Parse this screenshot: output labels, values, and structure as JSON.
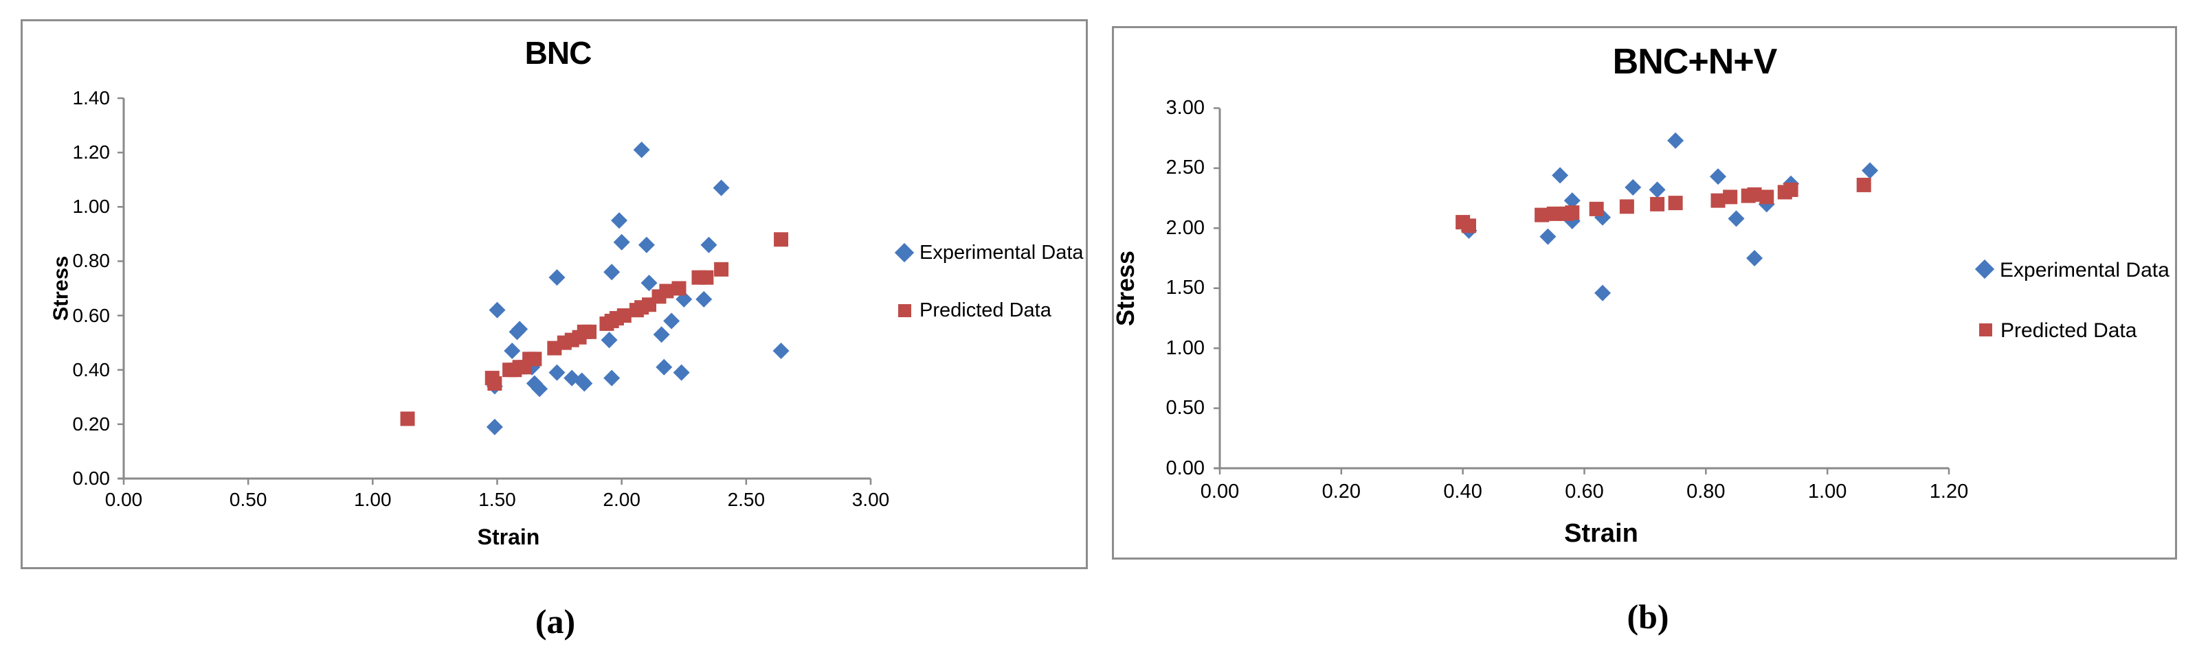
{
  "captions": [
    "(a)",
    "(b)"
  ],
  "colors": {
    "experimental": "#4678BE",
    "predicted": "#BE4B48",
    "axis": "#8a8a8a",
    "panel_border": "#8d8d8d",
    "text": "#000000"
  },
  "chart_data": [
    {
      "type": "scatter",
      "title": "BNC",
      "xlabel": "Strain",
      "ylabel": "Stress",
      "xlim": [
        0.0,
        3.0
      ],
      "ylim": [
        0.0,
        1.4
      ],
      "x_step": 0.5,
      "y_step": 0.2,
      "tick_decimals": 2,
      "grid": false,
      "legend_position": "right",
      "series": [
        {
          "name": "Experimental Data",
          "marker": "diamond",
          "color": "#4678BE",
          "points": [
            [
              1.49,
              0.34
            ],
            [
              1.49,
              0.19
            ],
            [
              1.5,
              0.62
            ],
            [
              1.56,
              0.47
            ],
            [
              1.58,
              0.54
            ],
            [
              1.59,
              0.55
            ],
            [
              1.64,
              0.41
            ],
            [
              1.65,
              0.35
            ],
            [
              1.67,
              0.33
            ],
            [
              1.74,
              0.39
            ],
            [
              1.74,
              0.74
            ],
            [
              1.8,
              0.37
            ],
            [
              1.84,
              0.36
            ],
            [
              1.85,
              0.35
            ],
            [
              1.95,
              0.51
            ],
            [
              1.96,
              0.37
            ],
            [
              1.96,
              0.76
            ],
            [
              1.99,
              0.95
            ],
            [
              2.0,
              0.87
            ],
            [
              2.08,
              1.21
            ],
            [
              2.1,
              0.86
            ],
            [
              2.11,
              0.72
            ],
            [
              2.16,
              0.53
            ],
            [
              2.17,
              0.41
            ],
            [
              2.2,
              0.58
            ],
            [
              2.24,
              0.39
            ],
            [
              2.25,
              0.66
            ],
            [
              2.33,
              0.66
            ],
            [
              2.35,
              0.86
            ],
            [
              2.4,
              1.07
            ],
            [
              2.64,
              0.47
            ]
          ]
        },
        {
          "name": "Predicted Data",
          "marker": "square",
          "color": "#BE4B48",
          "points": [
            [
              1.14,
              0.22
            ],
            [
              1.48,
              0.37
            ],
            [
              1.49,
              0.35
            ],
            [
              1.55,
              0.4
            ],
            [
              1.57,
              0.4
            ],
            [
              1.59,
              0.41
            ],
            [
              1.61,
              0.41
            ],
            [
              1.63,
              0.44
            ],
            [
              1.65,
              0.44
            ],
            [
              1.73,
              0.48
            ],
            [
              1.77,
              0.5
            ],
            [
              1.8,
              0.51
            ],
            [
              1.83,
              0.52
            ],
            [
              1.85,
              0.54
            ],
            [
              1.87,
              0.54
            ],
            [
              1.94,
              0.57
            ],
            [
              1.96,
              0.58
            ],
            [
              1.98,
              0.59
            ],
            [
              2.01,
              0.6
            ],
            [
              2.06,
              0.62
            ],
            [
              2.08,
              0.63
            ],
            [
              2.11,
              0.64
            ],
            [
              2.15,
              0.67
            ],
            [
              2.18,
              0.69
            ],
            [
              2.23,
              0.7
            ],
            [
              2.31,
              0.74
            ],
            [
              2.34,
              0.74
            ],
            [
              2.4,
              0.77
            ],
            [
              2.64,
              0.88
            ]
          ]
        }
      ]
    },
    {
      "type": "scatter",
      "title": "BNC+N+V",
      "xlabel": "Strain",
      "ylabel": "Stress",
      "xlim": [
        0.0,
        1.2
      ],
      "ylim": [
        0.0,
        3.0
      ],
      "x_step": 0.2,
      "y_step": 0.5,
      "tick_decimals": 2,
      "grid": false,
      "legend_position": "right",
      "series": [
        {
          "name": "Experimental Data",
          "marker": "diamond",
          "color": "#4678BE",
          "points": [
            [
              0.41,
              1.98
            ],
            [
              0.54,
              1.93
            ],
            [
              0.56,
              2.44
            ],
            [
              0.58,
              2.23
            ],
            [
              0.58,
              2.06
            ],
            [
              0.63,
              2.09
            ],
            [
              0.63,
              1.46
            ],
            [
              0.68,
              2.34
            ],
            [
              0.72,
              2.32
            ],
            [
              0.75,
              2.73
            ],
            [
              0.82,
              2.43
            ],
            [
              0.85,
              2.08
            ],
            [
              0.88,
              1.75
            ],
            [
              0.9,
              2.2
            ],
            [
              0.94,
              2.37
            ],
            [
              1.07,
              2.48
            ]
          ]
        },
        {
          "name": "Predicted Data",
          "marker": "square",
          "color": "#BE4B48",
          "points": [
            [
              0.4,
              2.05
            ],
            [
              0.41,
              2.02
            ],
            [
              0.53,
              2.11
            ],
            [
              0.55,
              2.12
            ],
            [
              0.57,
              2.12
            ],
            [
              0.58,
              2.13
            ],
            [
              0.62,
              2.16
            ],
            [
              0.67,
              2.18
            ],
            [
              0.72,
              2.2
            ],
            [
              0.75,
              2.21
            ],
            [
              0.82,
              2.23
            ],
            [
              0.84,
              2.26
            ],
            [
              0.87,
              2.27
            ],
            [
              0.88,
              2.28
            ],
            [
              0.9,
              2.26
            ],
            [
              0.93,
              2.3
            ],
            [
              0.94,
              2.32
            ],
            [
              1.06,
              2.36
            ]
          ]
        }
      ]
    }
  ]
}
